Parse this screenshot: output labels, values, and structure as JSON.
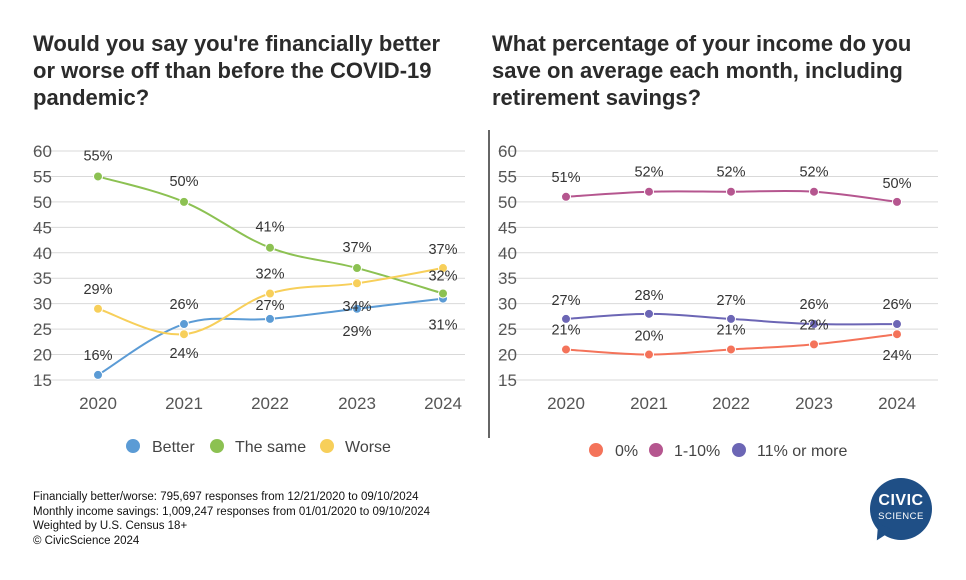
{
  "chart_data": [
    {
      "type": "line",
      "title": "Would you say you're financially better or worse off than before the COVID-19 pandemic?",
      "categories": [
        "2020",
        "2021",
        "2022",
        "2023",
        "2024"
      ],
      "ylim": [
        15,
        60
      ],
      "yticks": [
        "15",
        "20",
        "25",
        "30",
        "35",
        "40",
        "45",
        "50",
        "55",
        "60"
      ],
      "grid": true,
      "legend_position": "bottom",
      "series": [
        {
          "name": "Better",
          "color": "#5b9bd5",
          "values": [
            16,
            26,
            27,
            29,
            31
          ],
          "labels": [
            "16%",
            "26%",
            "27%",
            "29%",
            "31%"
          ]
        },
        {
          "name": "The same",
          "color": "#8cc152",
          "values": [
            55,
            50,
            41,
            37,
            32
          ],
          "labels": [
            "55%",
            "50%",
            "41%",
            "37%",
            "32%"
          ]
        },
        {
          "name": "Worse",
          "color": "#f7cf5a",
          "values": [
            29,
            24,
            32,
            34,
            37
          ],
          "labels": [
            "29%",
            "24%",
            "32%",
            "34%",
            "37%"
          ]
        }
      ]
    },
    {
      "type": "line",
      "title": "What percentage of your income do you save on average each month, including retirement savings?",
      "categories": [
        "2020",
        "2021",
        "2022",
        "2023",
        "2024"
      ],
      "ylim": [
        15,
        60
      ],
      "yticks": [
        "15",
        "20",
        "25",
        "30",
        "35",
        "40",
        "45",
        "50",
        "55",
        "60"
      ],
      "grid": true,
      "legend_position": "bottom",
      "series": [
        {
          "name": "0%",
          "color": "#f4735a",
          "values": [
            21,
            20,
            21,
            22,
            24
          ],
          "labels": [
            "21%",
            "20%",
            "21%",
            "22%",
            "24%"
          ]
        },
        {
          "name": "1-10%",
          "color": "#b5568f",
          "values": [
            51,
            52,
            52,
            52,
            50
          ],
          "labels": [
            "51%",
            "52%",
            "52%",
            "52%",
            "50%"
          ]
        },
        {
          "name": "11% or more",
          "color": "#6c66b5",
          "values": [
            27,
            28,
            27,
            26,
            26
          ],
          "labels": [
            "27%",
            "28%",
            "27%",
            "26%",
            "26%"
          ]
        }
      ]
    }
  ],
  "footnotes": {
    "line1": "Financially better/worse: 795,697 responses from 12/21/2020 to 09/10/2024",
    "line2": "Monthly income savings: 1,009,247 responses from 01/01/2020 to 09/10/2024",
    "line3": "Weighted by U.S. Census 18+",
    "line4": "© CivicScience 2024"
  },
  "logo": {
    "line1": "CIVIC",
    "line2": "SCIENCE"
  }
}
